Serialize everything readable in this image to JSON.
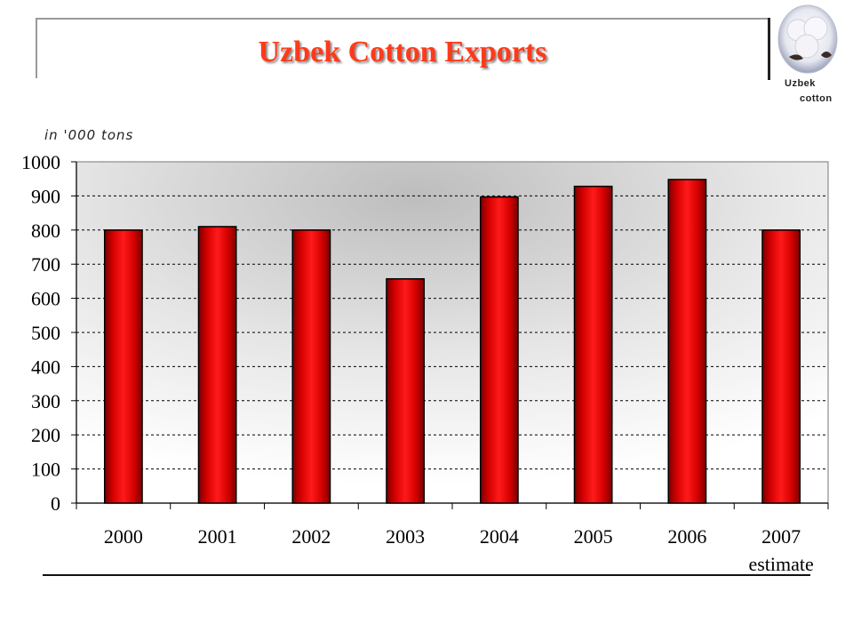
{
  "header": {
    "title": "Uzbek Cotton Exports",
    "logo_line_1": "Uzbek",
    "logo_line_2": "cotton"
  },
  "colors": {
    "title": "#ff3a1a",
    "bar": "#ee0000",
    "grid": "#000000"
  },
  "chart_data": {
    "type": "bar",
    "title": "Uzbek Cotton Exports",
    "ylabel": "in '000 tons",
    "xlabel": "",
    "categories": [
      "2000",
      "2001",
      "2002",
      "2003",
      "2004",
      "2005",
      "2006",
      "2007"
    ],
    "series": [
      {
        "values": [
          800,
          810,
          800,
          657,
          897,
          928,
          948,
          800
        ]
      }
    ],
    "annotation": "estimate",
    "ylim": [
      0,
      1000
    ],
    "yticks": [
      0,
      100,
      200,
      300,
      400,
      500,
      600,
      700,
      800,
      900,
      1000
    ],
    "grid": true,
    "legend": "none"
  }
}
